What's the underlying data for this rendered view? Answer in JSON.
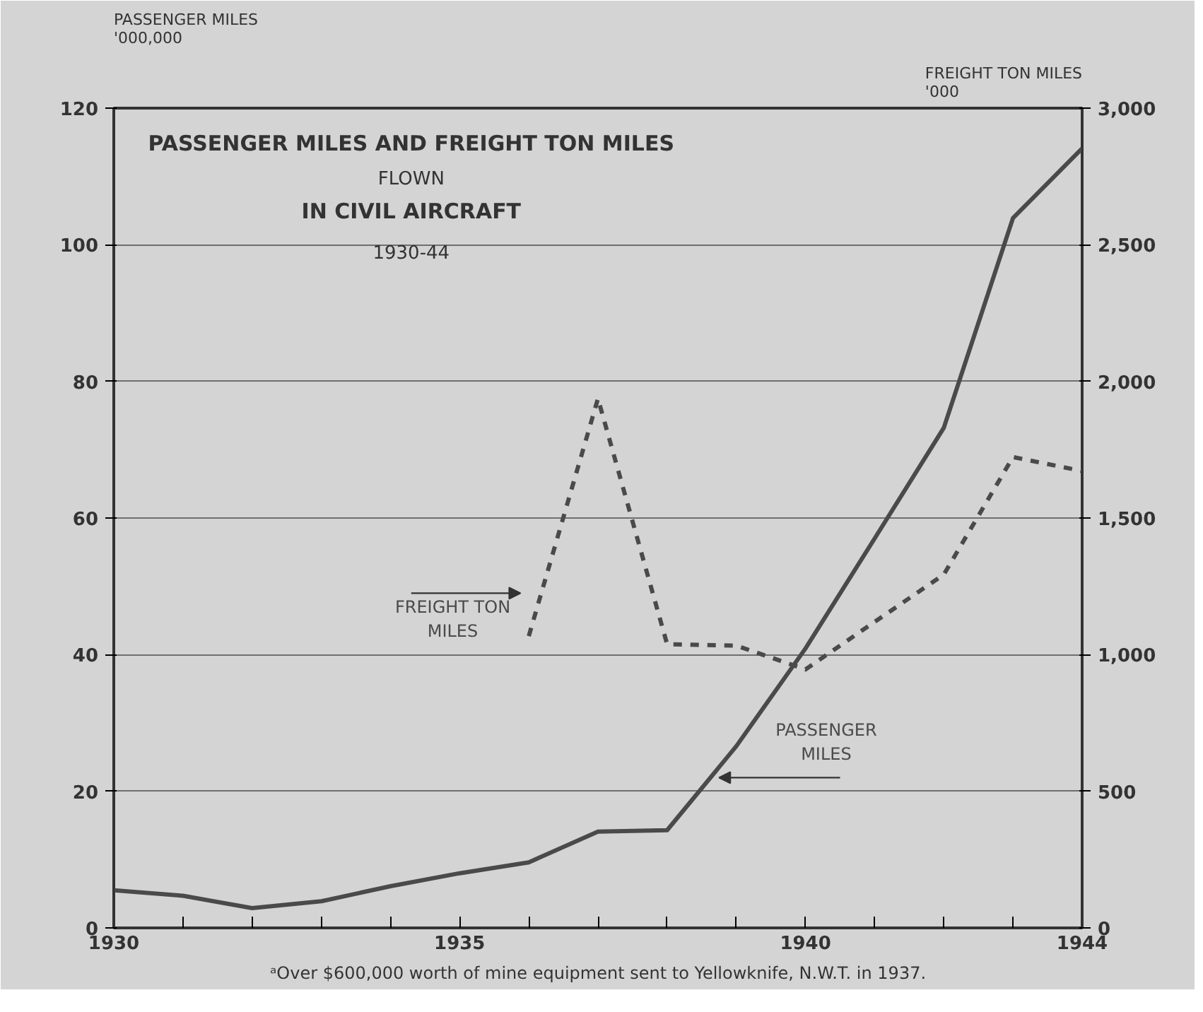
{
  "chart_data": {
    "type": "line",
    "title": "PASSENGER MILES AND FREIGHT TON MILES\nFLOWN\nIN CIVIL AIRCRAFT",
    "subtitle": "1930-44",
    "ylabel": "PASSENGER MILES\n'000,000",
    "y2label": "FREIGHT TON MILES\n'000",
    "x": [
      1930,
      1931,
      1932,
      1933,
      1934,
      1935,
      1936,
      1937,
      1938,
      1939,
      1940,
      1941,
      1942,
      1943,
      1944
    ],
    "series": [
      {
        "name": "PASSENGER MILES",
        "color": "#4a4a4a",
        "line_style": "solid",
        "values": [
          5.5,
          4.7,
          2.9,
          3.9,
          6.1,
          8.0,
          9.6,
          14.1,
          14.3,
          26.6,
          40.9,
          57,
          73.2,
          103.9,
          114.1
        ]
      },
      {
        "name": "FREIGHT TON MILES",
        "color": "#4a4a4a",
        "line_style": "dashed",
        "axis": "y2",
        "values": [
          null,
          null,
          null,
          null,
          null,
          null,
          1068,
          1937,
          1038,
          1033,
          946,
          1120,
          1293,
          1723,
          1672
        ]
      }
    ],
    "xlim": [
      1930,
      1944
    ],
    "xticks": [
      1930,
      {
        "value": 1931,
        "label": null
      },
      {
        "value": 1932,
        "label": null
      },
      {
        "value": 1933,
        "label": null
      },
      {
        "value": 1934,
        "label": null
      },
      1935,
      {
        "value": 1936,
        "label": null
      },
      {
        "value": 1937,
        "label": null
      },
      {
        "value": 1938,
        "label": null
      },
      {
        "value": 1939,
        "label": null
      },
      1940,
      {
        "value": 1941,
        "label": null
      },
      {
        "value": 1942,
        "label": null
      },
      {
        "value": 1943,
        "label": null
      },
      1944
    ],
    "ylim": [
      0,
      120
    ],
    "yticks": [
      0,
      20,
      40,
      60,
      80,
      100,
      120
    ],
    "y2lim": [
      0,
      3000
    ],
    "y2ticks": [
      0,
      500,
      {
        "value": 1000,
        "label": "1,000"
      },
      {
        "value": 1500,
        "label": "1,500"
      },
      {
        "value": 2000,
        "label": "2,000"
      },
      {
        "value": 2500,
        "label": "2,500"
      },
      {
        "value": 3000,
        "label": "3,000"
      }
    ],
    "grid": "y",
    "annotations": [
      "ᵃOver $600,000 worth of mine equipment sent to Yellowknife, N.W.T. in 1937."
    ]
  }
}
